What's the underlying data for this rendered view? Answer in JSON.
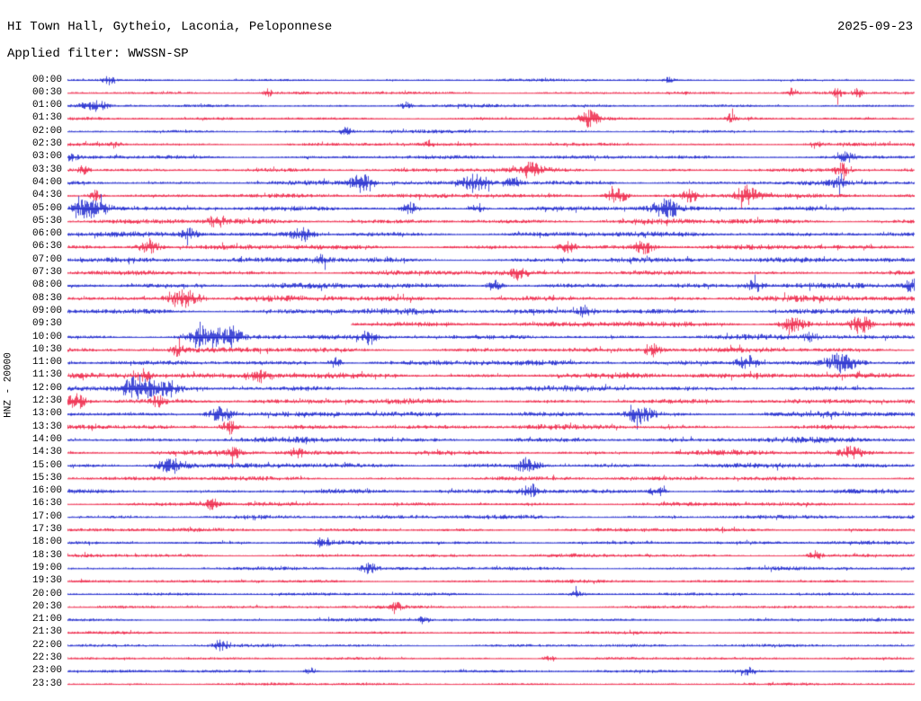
{
  "header": {
    "station_line": "HI Town Hall, Gytheio, Laconia, Peloponnese",
    "date": "2025-09-23",
    "filter_line": "Applied filter: WWSSN-SP"
  },
  "axis": {
    "left_label": "HNZ - 20000"
  },
  "chart_data": {
    "type": "line",
    "title": "HI Town Hall, Gytheio, Laconia, Peloponnese",
    "subtitle": "Applied filter: WWSSN-SP",
    "date": "2025-09-23",
    "channel": "HNZ",
    "gain_label": "20000",
    "row_minutes": 30,
    "x_range_minutes": [
      0,
      30
    ],
    "grid": false,
    "legend": "none",
    "trace_colors": {
      "blue": "#1520cc",
      "red": "#ed1c40"
    },
    "gap_note": "data gap on 09:30 row from 0% to 33.5% of row width",
    "rows": [
      {
        "time": "00:00",
        "color": "blue",
        "amp": 1.8,
        "events": [
          [
            0.048,
            5,
            10
          ],
          [
            0.71,
            3,
            8
          ]
        ]
      },
      {
        "time": "00:30",
        "color": "red",
        "amp": 2.0,
        "events": [
          [
            0.236,
            4,
            8
          ],
          [
            0.856,
            5,
            8
          ],
          [
            0.91,
            6,
            8
          ],
          [
            0.933,
            5,
            8
          ]
        ]
      },
      {
        "time": "01:00",
        "color": "blue",
        "amp": 2.2,
        "events": [
          [
            0.032,
            7,
            18
          ],
          [
            0.399,
            4,
            10
          ]
        ]
      },
      {
        "time": "01:30",
        "color": "red",
        "amp": 2.2,
        "events": [
          [
            0.617,
            9,
            14
          ],
          [
            0.784,
            5,
            8
          ]
        ]
      },
      {
        "time": "02:00",
        "color": "blue",
        "amp": 2.2,
        "events": [
          [
            0.33,
            5,
            10
          ]
        ]
      },
      {
        "time": "02:30",
        "color": "red",
        "amp": 2.4,
        "events": [
          [
            0.056,
            4,
            8
          ],
          [
            0.426,
            4,
            8
          ],
          [
            0.883,
            4,
            8
          ]
        ]
      },
      {
        "time": "03:00",
        "color": "blue",
        "amp": 2.8,
        "events": [
          [
            0.005,
            4,
            8
          ],
          [
            0.92,
            6,
            12
          ]
        ]
      },
      {
        "time": "03:30",
        "color": "red",
        "amp": 3.0,
        "events": [
          [
            0.019,
            5,
            10
          ],
          [
            0.548,
            8,
            18
          ],
          [
            0.915,
            7,
            12
          ]
        ]
      },
      {
        "time": "04:00",
        "color": "blue",
        "amp": 3.2,
        "events": [
          [
            0.346,
            10,
            16
          ],
          [
            0.482,
            9,
            22
          ],
          [
            0.527,
            7,
            12
          ],
          [
            0.91,
            5,
            10
          ]
        ]
      },
      {
        "time": "04:30",
        "color": "red",
        "amp": 3.2,
        "events": [
          [
            0.032,
            6,
            10
          ],
          [
            0.649,
            9,
            18
          ],
          [
            0.734,
            8,
            14
          ],
          [
            0.803,
            9,
            20
          ]
        ]
      },
      {
        "time": "05:00",
        "color": "blue",
        "amp": 3.4,
        "events": [
          [
            0.027,
            11,
            26
          ],
          [
            0.404,
            6,
            12
          ],
          [
            0.484,
            6,
            12
          ],
          [
            0.707,
            10,
            22
          ]
        ]
      },
      {
        "time": "05:30",
        "color": "red",
        "amp": 3.6,
        "events": [
          [
            0.176,
            6,
            12
          ]
        ]
      },
      {
        "time": "06:00",
        "color": "blue",
        "amp": 3.6,
        "events": [
          [
            0.144,
            6,
            12
          ],
          [
            0.277,
            8,
            16
          ]
        ]
      },
      {
        "time": "06:30",
        "color": "red",
        "amp": 3.4,
        "events": [
          [
            0.096,
            7,
            18
          ],
          [
            0.59,
            7,
            12
          ],
          [
            0.681,
            7,
            16
          ]
        ]
      },
      {
        "time": "07:00",
        "color": "blue",
        "amp": 3.8,
        "events": [
          [
            0.3,
            5,
            12
          ]
        ]
      },
      {
        "time": "07:30",
        "color": "red",
        "amp": 3.6,
        "events": [
          [
            0.532,
            7,
            12
          ]
        ]
      },
      {
        "time": "08:00",
        "color": "blue",
        "amp": 3.8,
        "events": [
          [
            0.505,
            7,
            12
          ],
          [
            0.812,
            7,
            12
          ],
          [
            0.997,
            9,
            10
          ]
        ]
      },
      {
        "time": "08:30",
        "color": "red",
        "amp": 4.0,
        "events": [
          [
            0.138,
            10,
            26
          ]
        ]
      },
      {
        "time": "09:00",
        "color": "blue",
        "amp": 4.2,
        "events": [
          [
            0.612,
            6,
            12
          ]
        ]
      },
      {
        "time": "09:30",
        "color": "red",
        "amp": 4.0,
        "gap": [
          0,
          0.335
        ],
        "events": [
          [
            0.856,
            8,
            20
          ],
          [
            0.936,
            10,
            16
          ]
        ]
      },
      {
        "time": "10:00",
        "color": "blue",
        "amp": 3.6,
        "events": [
          [
            0.165,
            12,
            30
          ],
          [
            0.195,
            8,
            12
          ],
          [
            0.356,
            7,
            14
          ],
          [
            0.878,
            5,
            10
          ]
        ]
      },
      {
        "time": "10:30",
        "color": "red",
        "amp": 3.6,
        "events": [
          [
            0.129,
            6,
            10
          ],
          [
            0.691,
            7,
            14
          ]
        ]
      },
      {
        "time": "11:00",
        "color": "blue",
        "amp": 3.8,
        "events": [
          [
            0.316,
            6,
            10
          ],
          [
            0.803,
            8,
            16
          ],
          [
            0.915,
            11,
            26
          ]
        ]
      },
      {
        "time": "11:30",
        "color": "red",
        "amp": 4.2,
        "events": [
          [
            0.09,
            7,
            12
          ],
          [
            0.229,
            7,
            16
          ]
        ]
      },
      {
        "time": "12:00",
        "color": "blue",
        "amp": 3.8,
        "events": [
          [
            0.085,
            13,
            28
          ],
          [
            0.12,
            8,
            12
          ]
        ]
      },
      {
        "time": "12:30",
        "color": "red",
        "amp": 3.6,
        "events": [
          [
            0.011,
            9,
            16
          ],
          [
            0.106,
            6,
            10
          ]
        ]
      },
      {
        "time": "13:00",
        "color": "blue",
        "amp": 3.6,
        "events": [
          [
            0.181,
            10,
            20
          ],
          [
            0.676,
            10,
            22
          ]
        ]
      },
      {
        "time": "13:30",
        "color": "red",
        "amp": 3.6,
        "events": [
          [
            0.191,
            8,
            14
          ]
        ]
      },
      {
        "time": "14:00",
        "color": "blue",
        "amp": 3.8,
        "events": []
      },
      {
        "time": "14:30",
        "color": "red",
        "amp": 3.4,
        "events": [
          [
            0.197,
            6,
            10
          ],
          [
            0.271,
            5,
            10
          ],
          [
            0.926,
            7,
            16
          ]
        ]
      },
      {
        "time": "15:00",
        "color": "blue",
        "amp": 3.4,
        "events": [
          [
            0.122,
            9,
            24
          ],
          [
            0.543,
            8,
            18
          ]
        ]
      },
      {
        "time": "15:30",
        "color": "red",
        "amp": 3.0,
        "events": []
      },
      {
        "time": "16:00",
        "color": "blue",
        "amp": 3.2,
        "events": [
          [
            0.548,
            7,
            14
          ],
          [
            0.697,
            6,
            12
          ]
        ]
      },
      {
        "time": "16:30",
        "color": "red",
        "amp": 2.8,
        "events": [
          [
            0.17,
            6,
            10
          ]
        ]
      },
      {
        "time": "17:00",
        "color": "blue",
        "amp": 3.0,
        "events": []
      },
      {
        "time": "17:30",
        "color": "red",
        "amp": 2.6,
        "events": []
      },
      {
        "time": "18:00",
        "color": "blue",
        "amp": 2.6,
        "events": [
          [
            0.3,
            5,
            10
          ]
        ]
      },
      {
        "time": "18:30",
        "color": "red",
        "amp": 2.6,
        "events": [
          [
            0.883,
            5,
            10
          ]
        ]
      },
      {
        "time": "19:00",
        "color": "blue",
        "amp": 2.6,
        "events": [
          [
            0.356,
            6,
            12
          ]
        ]
      },
      {
        "time": "19:30",
        "color": "red",
        "amp": 2.2,
        "events": []
      },
      {
        "time": "20:00",
        "color": "blue",
        "amp": 2.2,
        "events": [
          [
            0.601,
            4,
            10
          ]
        ]
      },
      {
        "time": "20:30",
        "color": "red",
        "amp": 2.2,
        "events": [
          [
            0.388,
            4,
            10
          ]
        ]
      },
      {
        "time": "21:00",
        "color": "blue",
        "amp": 2.2,
        "events": [
          [
            0.42,
            4,
            10
          ]
        ]
      },
      {
        "time": "21:30",
        "color": "red",
        "amp": 1.9,
        "events": []
      },
      {
        "time": "22:00",
        "color": "blue",
        "amp": 2.2,
        "events": [
          [
            0.181,
            6,
            12
          ]
        ]
      },
      {
        "time": "22:30",
        "color": "red",
        "amp": 1.9,
        "events": [
          [
            0.569,
            3,
            10
          ]
        ]
      },
      {
        "time": "23:00",
        "color": "blue",
        "amp": 2.1,
        "events": [
          [
            0.287,
            4,
            10
          ],
          [
            0.803,
            4,
            10
          ]
        ]
      },
      {
        "time": "23:30",
        "color": "red",
        "amp": 1.8,
        "events": []
      }
    ]
  }
}
